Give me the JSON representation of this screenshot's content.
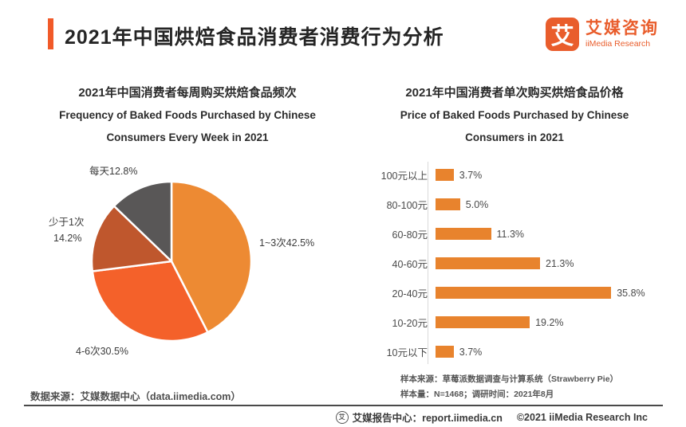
{
  "header": {
    "title": "2021年中国烘焙食品消费者消费行为分析",
    "logo": {
      "glyph": "艾",
      "name_cn": "艾媒咨询",
      "name_en": "iiMedia Research"
    }
  },
  "left_chart": {
    "title_cn": "2021年中国消费者每周购买烘焙食品频次",
    "title_en_line1": "Frequency of Baked Foods Purchased by Chinese",
    "title_en_line2": "Consumers Every Week in 2021",
    "labels": {
      "daily": "每天12.8%",
      "less_than_one_line1": "少于1次",
      "less_than_one_line2": "14.2%",
      "one_to_three": "1~3次42.5%",
      "four_to_six": "4-6次30.5%"
    }
  },
  "right_chart": {
    "title_cn": "2021年中国消费者单次购买烘焙食品价格",
    "title_en_line1": "Price of Baked Foods Purchased by Chinese",
    "title_en_line2": "Consumers in 2021",
    "note_line1": "样本来源：草莓派数据调查与计算系统（Strawberry Pie）",
    "note_line2": "样本量：N=1468；调研时间：2021年8月"
  },
  "footer": {
    "datasource": "数据来源：艾媒数据中心（data.iimedia.com）",
    "icon_glyph": "艾",
    "report_center": "艾媒报告中心：report.iimedia.cn",
    "copyright": "©2021  iiMedia Research Inc"
  },
  "colors": {
    "accent": "#F15A29",
    "logo_orange": "#E95D2C",
    "bar_orange": "#E8832D",
    "pie_orange": "#ED8A33",
    "pie_red_orange": "#F4612A",
    "pie_brick": "#BF572D",
    "pie_gray": "#595757"
  },
  "chart_data": [
    {
      "type": "pie",
      "title": "2021年中国消费者每周购买烘焙食品频次",
      "title_en": "Frequency of Baked Foods Purchased by Chinese Consumers Every Week in 2021",
      "categories": [
        "1~3次",
        "4-6次",
        "少于1次",
        "每天"
      ],
      "values": [
        42.5,
        30.5,
        14.2,
        12.8
      ],
      "unit": "%",
      "colors": [
        "#ED8A33",
        "#F4612A",
        "#BF572D",
        "#595757"
      ],
      "start_angle_deg": 0,
      "direction": "clockwise",
      "legend": "none",
      "data_labels": [
        "1~3次42.5%",
        "4-6次30.5%",
        "少于1次 14.2%",
        "每天12.8%"
      ]
    },
    {
      "type": "bar",
      "orientation": "horizontal",
      "title": "2021年中国消费者单次购买烘焙食品价格",
      "title_en": "Price of Baked Foods Purchased by Chinese Consumers in 2021",
      "categories": [
        "100元以上",
        "80-100元",
        "60-80元",
        "40-60元",
        "20-40元",
        "10-20元",
        "10元以下"
      ],
      "values": [
        3.7,
        5.0,
        11.3,
        21.3,
        35.8,
        19.2,
        3.7
      ],
      "value_labels": [
        "3.7%",
        "5.0%",
        "11.3%",
        "21.3%",
        "35.8%",
        "19.2%",
        "3.7%"
      ],
      "unit": "%",
      "xlim": [
        0,
        40
      ],
      "bar_color": "#E8832D",
      "grid": false
    }
  ]
}
